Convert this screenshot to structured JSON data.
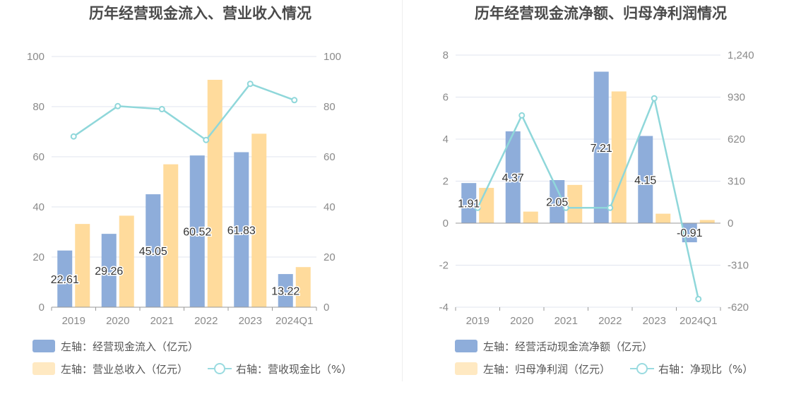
{
  "colors": {
    "bar_primary": "#8eadda",
    "bar_secondary": "#ffdb9c",
    "legend_bar_primary": "#8eadda",
    "legend_bar_secondary": "#ffe9c2",
    "line": "#8fd7da",
    "axis_text": "#8a8a8a",
    "grid": "#e1e4ef"
  },
  "chart_data": [
    {
      "type": "bar",
      "title": "历年经营现金流入、营业收入情况",
      "categories": [
        "2019",
        "2020",
        "2021",
        "2022",
        "2023",
        "2024Q1"
      ],
      "left_axis": {
        "min": 0,
        "max": 100,
        "ticks": [
          "0",
          "20",
          "40",
          "60",
          "80",
          "100"
        ],
        "tick_values": [
          0,
          20,
          40,
          60,
          80,
          100
        ]
      },
      "right_axis": {
        "min": 0,
        "max": 100,
        "ticks": [
          "0",
          "20",
          "40",
          "60",
          "80",
          "100"
        ],
        "tick_values": [
          0,
          20,
          40,
          60,
          80,
          100
        ]
      },
      "grid": true,
      "legend_position": "bottom-left",
      "series": [
        {
          "name": "左轴：经营现金流入（亿元）",
          "type": "bar",
          "axis": "left",
          "values": [
            22.61,
            29.26,
            45.05,
            60.52,
            61.83,
            13.22
          ],
          "labels": [
            "22.61",
            "29.26",
            "45.05",
            "60.52",
            "61.83",
            "13.22"
          ]
        },
        {
          "name": "左轴：营业总收入（亿元）",
          "type": "bar",
          "axis": "left",
          "values": [
            33.2,
            36.5,
            57.0,
            90.7,
            69.2,
            16.0
          ]
        },
        {
          "name": "右轴：营收现金比（%）",
          "type": "line",
          "axis": "right",
          "values": [
            68.1,
            80.2,
            79.0,
            66.7,
            89.1,
            82.6
          ]
        }
      ]
    },
    {
      "type": "bar",
      "title": "历年经营现金流净额、归母净利润情况",
      "categories": [
        "2019",
        "2020",
        "2021",
        "2022",
        "2023",
        "2024Q1"
      ],
      "left_axis": {
        "min": -4,
        "max": 8,
        "ticks": [
          "-4",
          "-2",
          "0",
          "2",
          "4",
          "6",
          "8"
        ],
        "tick_values": [
          -4,
          -2,
          0,
          2,
          4,
          6,
          8
        ]
      },
      "right_axis": {
        "min": -620,
        "max": 1240,
        "ticks": [
          "-620",
          "-310",
          "0",
          "310",
          "620",
          "930",
          "1,240"
        ],
        "tick_values": [
          -620,
          -310,
          0,
          310,
          620,
          930,
          1240
        ]
      },
      "grid": true,
      "legend_position": "bottom-left",
      "series": [
        {
          "name": "左轴：经营活动现金流净额（亿元）",
          "type": "bar",
          "axis": "left",
          "values": [
            1.91,
            4.37,
            2.05,
            7.21,
            4.15,
            -0.91
          ],
          "labels": [
            "1.91",
            "4.37",
            "2.05",
            "7.21",
            "4.15",
            "-0.91"
          ]
        },
        {
          "name": "左轴：归母净利润（亿元）",
          "type": "bar",
          "axis": "left",
          "values": [
            1.68,
            0.55,
            1.82,
            6.27,
            0.45,
            0.15
          ]
        },
        {
          "name": "右轴：净现比（%）",
          "type": "line",
          "axis": "right",
          "values": [
            113,
            795,
            113,
            113,
            921,
            -560
          ]
        }
      ]
    }
  ]
}
